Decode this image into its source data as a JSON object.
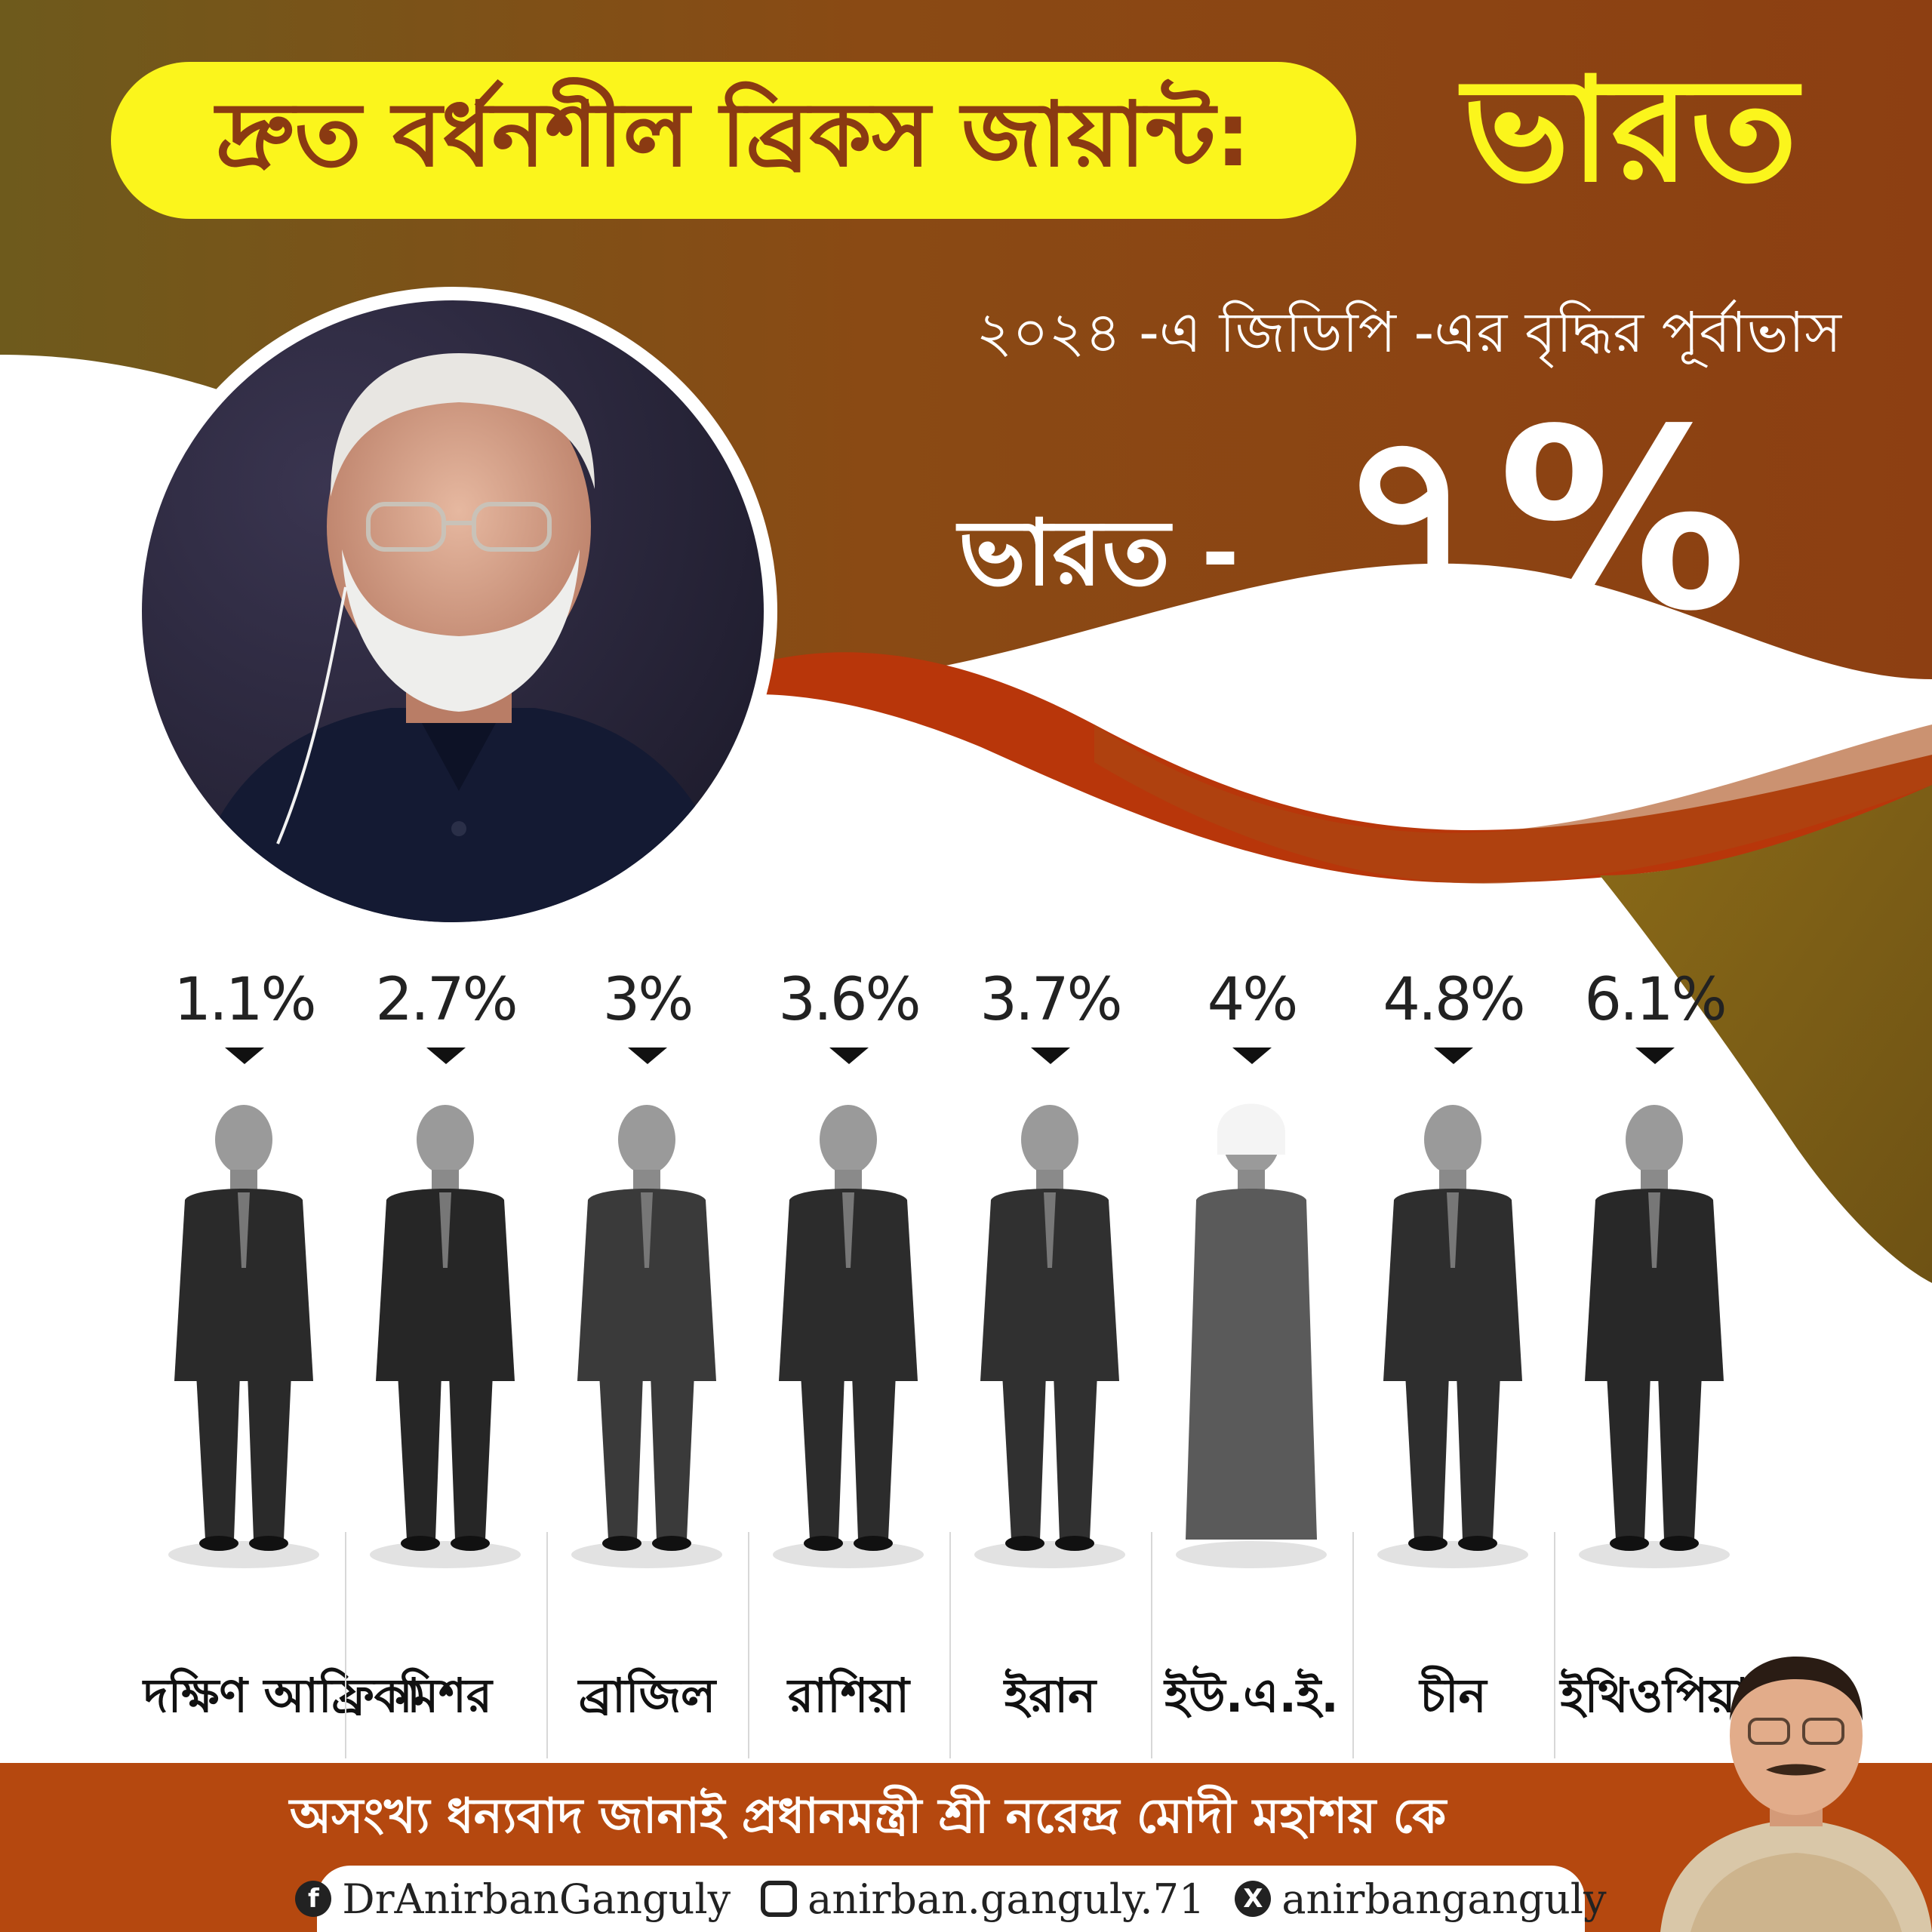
{
  "headline": {
    "text": "দ্রুত বর্ধনশীল ব্রিকস জায়ান্ট:",
    "accent": "ভারত"
  },
  "subtitle": "২০২৪ -এ জিডিপি -এর বৃদ্ধির পূর্বাভাস",
  "india": {
    "label": "ভারত -",
    "value": "৭%"
  },
  "leaders": [
    {
      "value": "1.1%",
      "name": "দক্ষিণ আফ্রিকা",
      "growth": 1.1
    },
    {
      "value": "2.7%",
      "name": "মিশর",
      "growth": 2.7
    },
    {
      "value": "3%",
      "name": "ব্রাজিল",
      "growth": 3
    },
    {
      "value": "3.6%",
      "name": "রাশিয়া",
      "growth": 3.6
    },
    {
      "value": "3.7%",
      "name": "ইরান",
      "growth": 3.7
    },
    {
      "value": "4%",
      "name": "ইউ.এ.ই.",
      "growth": 4
    },
    {
      "value": "4.8%",
      "name": "চীন",
      "growth": 4.8
    },
    {
      "value": "6.1%",
      "name": "ইথিওপিয়া",
      "growth": 6.1
    }
  ],
  "footer": {
    "thanks": "অসংখ্য ধন্যবাদ জানাই প্রধানমন্ত্রী শ্রী নরেন্দ্র মোদী মহাশয় কে",
    "social": [
      {
        "icon": "facebook-icon",
        "glyph": "f",
        "handle": "DrAnirbanGanguly"
      },
      {
        "icon": "instagram-icon",
        "glyph": "",
        "handle": "anirban.ganguly.71"
      },
      {
        "icon": "x-icon",
        "glyph": "X",
        "handle": "anirbanganguly"
      }
    ]
  },
  "colors": {
    "brown_dark": "#7a4418",
    "brown_mid": "#8c4a14",
    "olive": "#7a6a1e",
    "orange_red": "#b8360a",
    "yellow": "#fbf51c",
    "footer_orange": "#b5480f"
  }
}
